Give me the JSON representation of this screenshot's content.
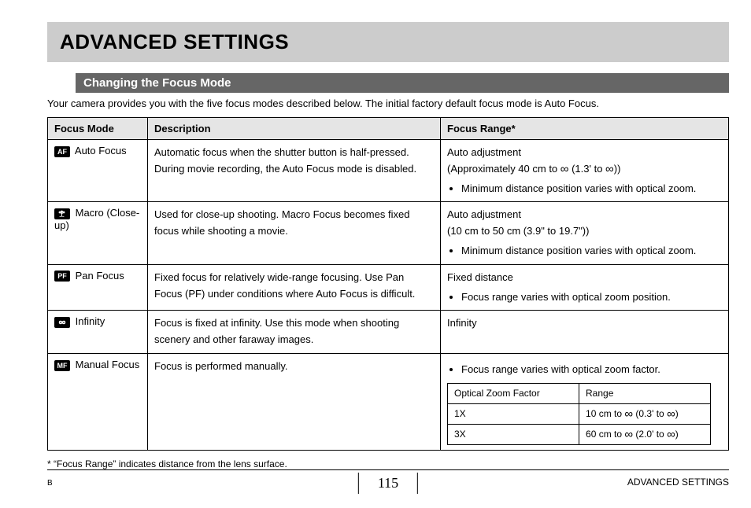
{
  "title": "ADVANCED SETTINGS",
  "section_title": "Changing the Focus Mode",
  "intro": "Your camera provides you with the five focus modes described below. The initial factory default focus mode is Auto Focus.",
  "table": {
    "headers": [
      "Focus Mode",
      "Description",
      "Focus Range*"
    ],
    "rows": [
      {
        "icon_text": "AF",
        "mode": "Auto Focus",
        "desc": "Automatic focus when the shutter button is half-pressed. During movie recording, the Auto Focus mode is disabled.",
        "range_lines": [
          "Auto adjustment",
          "(Approximately 40 cm to ∞ (1.3' to ∞))"
        ],
        "range_bullets": [
          "Minimum distance position varies with optical zoom."
        ]
      },
      {
        "icon_svg": "flower",
        "mode": "Macro (Close-up)",
        "desc": "Used for close-up shooting. Macro Focus becomes fixed focus while shooting a movie.",
        "range_lines": [
          "Auto adjustment",
          "(10 cm to 50 cm (3.9\" to 19.7\"))"
        ],
        "range_bullets": [
          "Minimum distance position varies with optical zoom."
        ]
      },
      {
        "icon_text": "PF",
        "mode": "Pan Focus",
        "desc": "Fixed focus for relatively wide-range focusing. Use Pan Focus (PF) under conditions where Auto Focus is difficult.",
        "range_lines": [
          "Fixed distance"
        ],
        "range_bullets": [
          "Focus range varies with optical zoom position."
        ]
      },
      {
        "icon_svg": "infinity",
        "mode": "Infinity",
        "desc": "Focus is fixed at infinity. Use this mode when shooting scenery and other faraway images.",
        "range_lines": [
          "Infinity"
        ],
        "range_bullets": []
      },
      {
        "icon_text": "MF",
        "mode": "Manual Focus",
        "desc": "Focus is performed manually.",
        "range_lines": [],
        "range_bullets": [
          "Focus range varies with optical zoom factor."
        ],
        "subtable": {
          "header": [
            "Optical Zoom Factor",
            "Range"
          ],
          "rows": [
            [
              "1X",
              "10 cm to ∞ (0.3' to ∞)"
            ],
            [
              "3X",
              "60 cm to ∞ (2.0' to ∞)"
            ]
          ]
        }
      }
    ]
  },
  "footnote": "* “Focus Range” indicates distance from the lens surface.",
  "footer": {
    "left": "B",
    "page": "115",
    "right": "ADVANCED SETTINGS"
  }
}
